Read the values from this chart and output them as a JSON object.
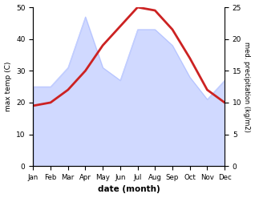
{
  "months": [
    "Jan",
    "Feb",
    "Mar",
    "Apr",
    "May",
    "Jun",
    "Jul",
    "Aug",
    "Sep",
    "Oct",
    "Nov",
    "Dec"
  ],
  "temperature": [
    19,
    20,
    24,
    30,
    38,
    44,
    50,
    49,
    43,
    34,
    24,
    20
  ],
  "precipitation": [
    25,
    25,
    31,
    47,
    31,
    27,
    43,
    43,
    38,
    28,
    21,
    27
  ],
  "temp_ylim": [
    0,
    50
  ],
  "precip_ylim": [
    0,
    25
  ],
  "temp_color": "#cc2222",
  "precip_color": "#aabbff",
  "precip_fill_alpha": 0.55,
  "xlabel": "date (month)",
  "ylabel_left": "max temp (C)",
  "ylabel_right": "med. precipitation (kg/m2)",
  "temp_linewidth": 2.0,
  "background_color": "#ffffff",
  "left_yticks": [
    0,
    10,
    20,
    30,
    40,
    50
  ],
  "right_yticks": [
    0,
    5,
    10,
    15,
    20,
    25
  ]
}
